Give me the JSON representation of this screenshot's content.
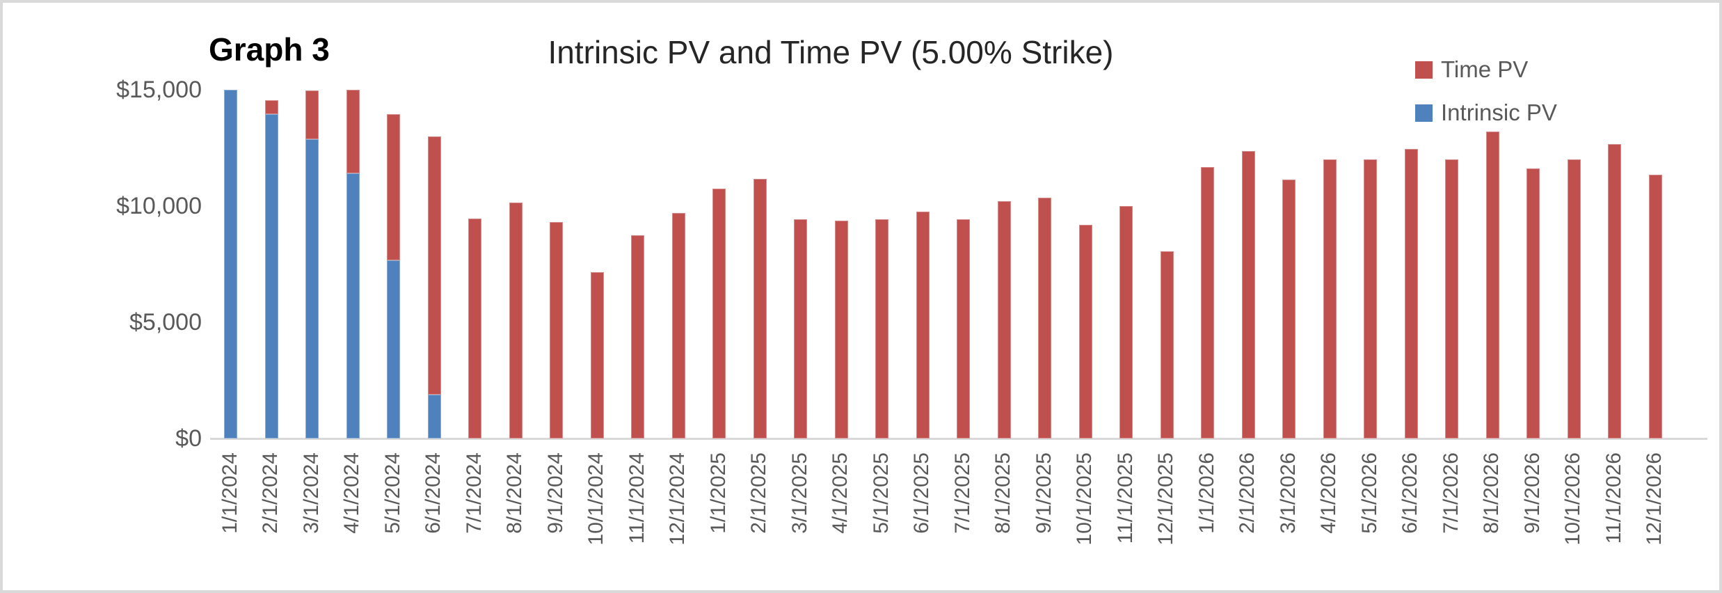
{
  "graph_label": "Graph 3",
  "title": "Intrinsic PV and Time PV (5.00% Strike)",
  "colors": {
    "time_pv": "#C0504D",
    "intrinsic_pv": "#4F81BD",
    "axis_line": "#D9D9D9",
    "axis_text": "#595959",
    "title_text": "#262626",
    "border": "#D9D9D9"
  },
  "legend": {
    "position": "top-right",
    "items": [
      {
        "label": "Time PV",
        "color": "#C0504D"
      },
      {
        "label": "Intrinsic PV",
        "color": "#4F81BD"
      }
    ]
  },
  "y_axis": {
    "tick_labels": [
      "$15,000",
      "$10,000",
      "$5,000",
      "$0"
    ],
    "tick_values": [
      15000,
      10000,
      5000,
      0
    ]
  },
  "chart_data": {
    "type": "bar",
    "stacked": true,
    "title": "Intrinsic PV and Time PV (5.00% Strike)",
    "xlabel": "",
    "ylabel": "",
    "ylim": [
      0,
      15000
    ],
    "ytick_step": 5000,
    "ytick_format": "$#,##0",
    "grid": false,
    "legend_position": "top-right",
    "categories": [
      "1/1/2024",
      "2/1/2024",
      "3/1/2024",
      "4/1/2024",
      "5/1/2024",
      "6/1/2024",
      "7/1/2024",
      "8/1/2024",
      "9/1/2024",
      "10/1/2024",
      "11/1/2024",
      "12/1/2024",
      "1/1/2025",
      "2/1/2025",
      "3/1/2025",
      "4/1/2025",
      "5/1/2025",
      "6/1/2025",
      "7/1/2025",
      "8/1/2025",
      "9/1/2025",
      "10/1/2025",
      "11/1/2025",
      "12/1/2025",
      "1/1/2026",
      "2/1/2026",
      "3/1/2026",
      "4/1/2026",
      "5/1/2026",
      "6/1/2026",
      "7/1/2026",
      "8/1/2026",
      "9/1/2026",
      "10/1/2026",
      "11/1/2026",
      "12/1/2026"
    ],
    "series": [
      {
        "name": "Intrinsic PV",
        "color": "#4F81BD",
        "values": [
          15000,
          13950,
          12870,
          11400,
          7650,
          1900,
          0,
          0,
          0,
          0,
          0,
          0,
          0,
          0,
          0,
          0,
          0,
          0,
          0,
          0,
          0,
          0,
          0,
          0,
          0,
          0,
          0,
          0,
          0,
          0,
          0,
          0,
          0,
          0,
          0,
          0
        ]
      },
      {
        "name": "Time PV",
        "color": "#C0504D",
        "values": [
          0,
          600,
          2100,
          3600,
          6300,
          11100,
          9460,
          10150,
          9310,
          7150,
          8740,
          9700,
          10750,
          11170,
          9430,
          9370,
          9430,
          9760,
          9430,
          10210,
          10360,
          9190,
          10000,
          8050,
          11680,
          12370,
          11150,
          12000,
          12000,
          12460,
          12000,
          13200,
          11620,
          12000,
          12670,
          11350
        ]
      }
    ]
  }
}
